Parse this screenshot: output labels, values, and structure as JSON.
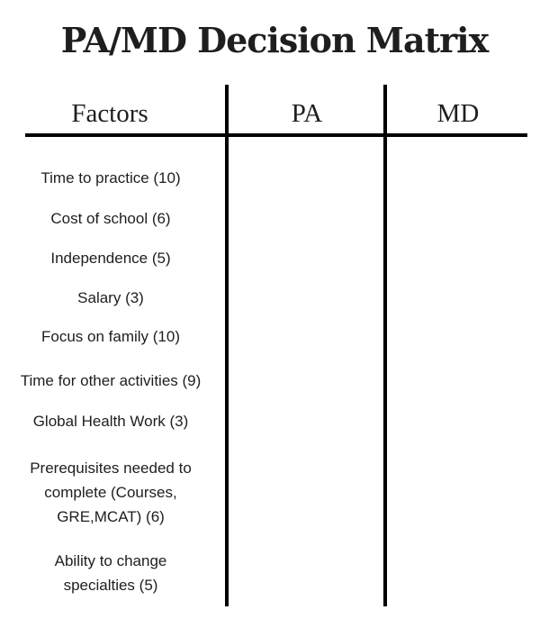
{
  "title": "PA/MD Decision Matrix",
  "headers": [
    "Factors",
    "PA",
    "MD"
  ],
  "factors": [
    "Time to practice (10)",
    "Cost of school (6)",
    "Independence (5)",
    "Salary (3)",
    "Focus on family (10)",
    "Time for other activities (9)",
    "Global Health Work (3)",
    "Prerequisites needed to complete (Courses, GRE,MCAT) (6)",
    "Ability to change specialties (5)"
  ]
}
